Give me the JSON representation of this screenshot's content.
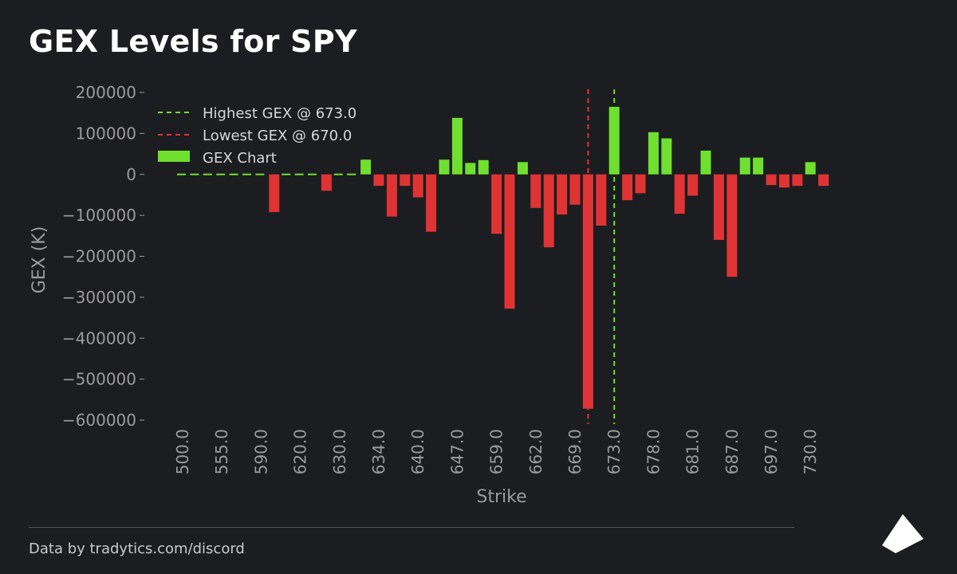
{
  "title": "GEX Levels for SPY",
  "footer": {
    "source": "Data by tradytics.com/discord"
  },
  "colors": {
    "background": "#1c1d21",
    "positive": "#6fe02f",
    "negative": "#e03434",
    "highest_line": "#6fe02f",
    "lowest_line": "#e03434",
    "axis_text": "#9a9a9f"
  },
  "chart_data": {
    "type": "bar",
    "title": "GEX Levels for SPY",
    "xlabel": "Strike",
    "ylabel": "GEX (K)",
    "ylim": [
      -610000,
      210000
    ],
    "yticks": [
      200000,
      100000,
      0,
      -100000,
      -200000,
      -300000,
      -400000,
      -500000,
      -600000
    ],
    "ytick_labels": [
      "200000",
      "100000",
      "0",
      "−100000",
      "−200000",
      "−300000",
      "−400000",
      "−500000",
      "−600000"
    ],
    "xtick_labels": [
      "500.0",
      "555.0",
      "590.0",
      "620.0",
      "630.0",
      "634.0",
      "640.0",
      "647.0",
      "659.0",
      "662.0",
      "669.0",
      "673.0",
      "678.0",
      "681.0",
      "687.0",
      "697.0",
      "730.0"
    ],
    "xtick_positions": [
      0,
      3,
      6,
      9,
      12,
      15,
      18,
      21,
      24,
      27,
      30,
      33,
      36,
      39,
      42,
      45,
      48
    ],
    "grid": false,
    "legend_position": "top-left",
    "legend": [
      {
        "label": "Highest GEX @ 673.0",
        "style": "dashed-line",
        "color": "#6fe02f"
      },
      {
        "label": "Lowest GEX @ 670.0",
        "style": "dashed-line",
        "color": "#e03434"
      },
      {
        "label": "GEX Chart",
        "style": "patch",
        "color": "#6fe02f"
      }
    ],
    "highest_line": {
      "label": "Highest GEX @ 673.0",
      "strike": 673.0,
      "index": 33
    },
    "lowest_line": {
      "label": "Lowest GEX @ 670.0",
      "strike": 670.0,
      "index": 31
    },
    "values": [
      1000,
      1000,
      1000,
      1000,
      1000,
      1000,
      1000,
      -92000,
      1000,
      1000,
      1000,
      -40000,
      1000,
      1000,
      36000,
      -28000,
      -103000,
      -28000,
      -56000,
      -140000,
      36000,
      138000,
      28000,
      35000,
      -145000,
      -328000,
      30000,
      -82000,
      -178000,
      -98000,
      -74000,
      -572000,
      -125000,
      165000,
      -63000,
      -46000,
      103000,
      88000,
      -96000,
      -52000,
      58000,
      -160000,
      -250000,
      41000,
      41000,
      -26000,
      -32000,
      -28000,
      30000,
      -28000
    ]
  }
}
